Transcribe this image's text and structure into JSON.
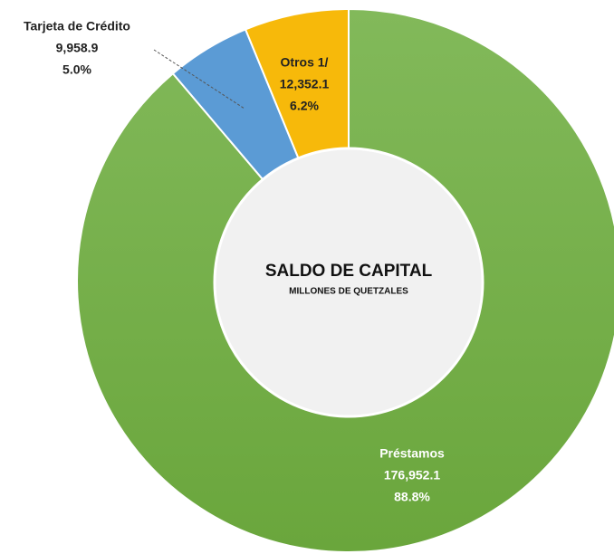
{
  "chart_data": {
    "type": "donut",
    "title": "SALDO DE CAPITAL",
    "subtitle": "MILLONES DE QUETZALES",
    "categories": [
      "Préstamos",
      "Tarjeta de Crédito",
      "Otros 1/"
    ],
    "values": [
      176952.1,
      9958.9,
      12352.1
    ],
    "value_labels": [
      "176,952.1",
      "9,958.9",
      "12,352.1"
    ],
    "percents": [
      88.8,
      5.0,
      6.2
    ],
    "percent_labels": [
      "88.8%",
      "5.0%",
      "6.2%"
    ],
    "colors": [
      "#74b04a",
      "#5b9bd5",
      "#f7b90a"
    ]
  }
}
